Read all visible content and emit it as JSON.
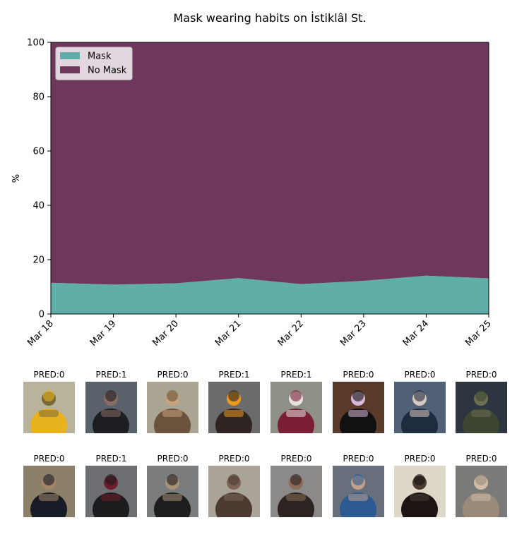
{
  "chart_data": {
    "type": "area",
    "stacked": true,
    "title": "Mask wearing habits on İstiklâl St.",
    "xlabel": "",
    "ylabel": "%",
    "categories": [
      "Mar 18",
      "Mar 19",
      "Mar 20",
      "Mar 21",
      "Mar 22",
      "Mar 23",
      "Mar 24",
      "Mar 25"
    ],
    "ylim": [
      0,
      100
    ],
    "yticks": [
      0,
      20,
      40,
      60,
      80,
      100
    ],
    "series": [
      {
        "name": "Mask",
        "color": "#5fafa8",
        "values": [
          11.5,
          10.8,
          11.3,
          13.2,
          11.0,
          12.2,
          14.1,
          13.1
        ]
      },
      {
        "name": "No Mask",
        "color": "#6e375c",
        "values": [
          88.5,
          89.2,
          88.7,
          86.8,
          89.0,
          87.8,
          85.9,
          86.9
        ]
      }
    ],
    "legend_position": "top-left",
    "grid": false
  },
  "thumbnails": {
    "rows": [
      [
        {
          "label": "PRED:0",
          "bg": "#b9b39c",
          "fg": "#e8b21e",
          "accent": "#7a6a3a"
        },
        {
          "label": "PRED:1",
          "bg": "#59616a",
          "fg": "#1c1e22",
          "accent": "#8a6c64"
        },
        {
          "label": "PRED:0",
          "bg": "#a9a592",
          "fg": "#6b533b",
          "accent": "#c6a37e"
        },
        {
          "label": "PRED:1",
          "bg": "#6c6b6c",
          "fg": "#2e2522",
          "accent": "#e79a1d"
        },
        {
          "label": "PRED:1",
          "bg": "#8e8f86",
          "fg": "#7a1e35",
          "accent": "#e7e2de"
        },
        {
          "label": "PRED:0",
          "bg": "#5a3a2a",
          "fg": "#111111",
          "accent": "#d8b7d8"
        },
        {
          "label": "PRED:0",
          "bg": "#4f6077",
          "fg": "#1f2b3f",
          "accent": "#d8c9be"
        },
        {
          "label": "PRED:0",
          "bg": "#2c3540",
          "fg": "#3d4633",
          "accent": "#6b7050"
        }
      ],
      [
        {
          "label": "PRED:0",
          "bg": "#8c8068",
          "fg": "#181c26",
          "accent": "#a3866a"
        },
        {
          "label": "PRED:1",
          "bg": "#6d6f72",
          "fg": "#1c1c1e",
          "accent": "#6f1d2d"
        },
        {
          "label": "PRED:0",
          "bg": "#7b7c7e",
          "fg": "#1e1e20",
          "accent": "#a59279"
        },
        {
          "label": "PRED:0",
          "bg": "#a9a398",
          "fg": "#4d3a31",
          "accent": "#7a6556"
        },
        {
          "label": "PRED:0",
          "bg": "#8b8a88",
          "fg": "#2b2421",
          "accent": "#8a6a58"
        },
        {
          "label": "PRED:0",
          "bg": "#676f7c",
          "fg": "#2c5a91",
          "accent": "#c2a08a"
        },
        {
          "label": "PRED:0",
          "bg": "#ddd8c8",
          "fg": "#1c1514",
          "accent": "#4a3a30"
        },
        {
          "label": "PRED:0",
          "bg": "#7a7a78",
          "fg": "#9a8a7a",
          "accent": "#d2bda9"
        }
      ]
    ]
  }
}
